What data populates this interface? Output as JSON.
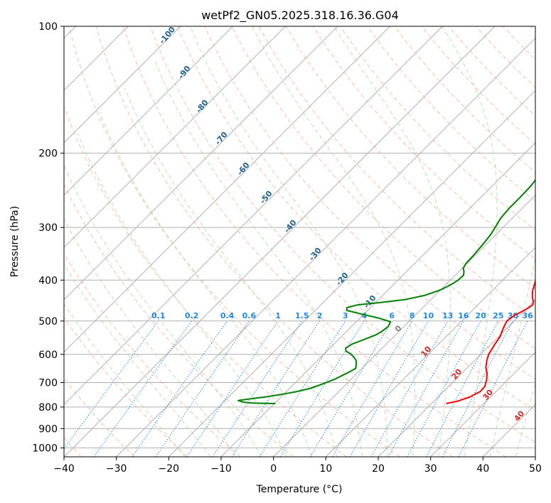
{
  "chart_data": {
    "type": "line",
    "title": "wetPf2_GN05.2025.318.16.36.G04",
    "xlabel": "Temperature (°C)",
    "ylabel": "Pressure (hPa)",
    "xlim": [
      -40,
      50
    ],
    "ylim": [
      1050,
      100
    ],
    "xticks": [
      "−40",
      "−30",
      "−20",
      "−10",
      "0",
      "10",
      "20",
      "30",
      "40",
      "50"
    ],
    "yticks": [
      "100",
      "200",
      "300",
      "400",
      "500",
      "600",
      "700",
      "800",
      "900",
      "1000"
    ],
    "dry_adiabat_labels": [
      "-100",
      "-90",
      "-80",
      "-70",
      "-60",
      "-50",
      "-40",
      "-30",
      "-20",
      "-10",
      "0",
      "10",
      "20",
      "30",
      "40"
    ],
    "mixing_ratio_labels": [
      "0.1",
      "0.2",
      "0.4",
      "0.6",
      "1",
      "1.5",
      "2",
      "3",
      "4",
      "6",
      "8",
      "10",
      "13",
      "16",
      "20",
      "25",
      "30",
      "36"
    ],
    "series": [
      {
        "name": "Temperature",
        "color": "#ff0000",
        "points": [
          [
            22.8,
            785
          ],
          [
            24.5,
            775
          ],
          [
            26.0,
            758
          ],
          [
            27.0,
            735
          ],
          [
            26.9,
            715
          ],
          [
            26.0,
            690
          ],
          [
            24.8,
            665
          ],
          [
            23.5,
            645
          ],
          [
            22.3,
            620
          ],
          [
            21.5,
            600
          ],
          [
            20.8,
            570
          ],
          [
            20.3,
            545
          ],
          [
            19.3,
            520
          ],
          [
            18.6,
            500
          ],
          [
            19.0,
            485
          ],
          [
            20.0,
            470
          ],
          [
            20.5,
            458
          ],
          [
            19.8,
            448
          ],
          [
            19.0,
            440
          ],
          [
            17.8,
            425
          ],
          [
            16.3,
            400
          ],
          [
            14.8,
            380
          ],
          [
            13.2,
            362
          ],
          [
            11.8,
            342
          ],
          [
            10.5,
            325
          ],
          [
            9.2,
            310
          ],
          [
            7.8,
            295
          ],
          [
            6.2,
            280
          ],
          [
            4.8,
            265
          ],
          [
            3.2,
            250
          ],
          [
            1.8,
            236
          ],
          [
            0.6,
            222
          ],
          [
            -0.3,
            210
          ],
          [
            -0.9,
            200
          ],
          [
            -1.2,
            190
          ],
          [
            -1.4,
            180
          ],
          [
            -1.2,
            172
          ],
          [
            -0.7,
            165
          ],
          [
            0.2,
            158
          ],
          [
            1.5,
            152
          ],
          [
            3.2,
            145
          ],
          [
            4.8,
            138
          ],
          [
            5.8,
            130
          ],
          [
            6.6,
            122
          ],
          [
            7.4,
            115
          ],
          [
            8.2,
            108
          ],
          [
            9.0,
            100
          ]
        ]
      },
      {
        "name": "Dewpoint",
        "color": "#008000",
        "points": [
          [
            -9.8,
            785
          ],
          [
            -12.0,
            784
          ],
          [
            -14.8,
            782
          ],
          [
            -16.5,
            778
          ],
          [
            -17.5,
            772
          ],
          [
            -15.5,
            765
          ],
          [
            -13.0,
            757
          ],
          [
            -10.5,
            747
          ],
          [
            -8.0,
            735
          ],
          [
            -6.0,
            722
          ],
          [
            -4.5,
            705
          ],
          [
            -3.0,
            685
          ],
          [
            -1.7,
            660
          ],
          [
            -1.2,
            648
          ],
          [
            -1.8,
            635
          ],
          [
            -2.5,
            622
          ],
          [
            -3.6,
            610
          ],
          [
            -5.0,
            598
          ],
          [
            -6.3,
            590
          ],
          [
            -7.0,
            580
          ],
          [
            -6.5,
            567
          ],
          [
            -5.0,
            552
          ],
          [
            -3.8,
            540
          ],
          [
            -3.3,
            530
          ],
          [
            -3.0,
            515
          ],
          [
            -3.5,
            502
          ],
          [
            -6.5,
            492
          ],
          [
            -11.0,
            480
          ],
          [
            -14.0,
            472
          ],
          [
            -14.5,
            465
          ],
          [
            -13.0,
            458
          ],
          [
            -9.0,
            452
          ],
          [
            -5.0,
            445
          ],
          [
            -2.0,
            435
          ],
          [
            0.0,
            422
          ],
          [
            1.0,
            410
          ],
          [
            1.5,
            400
          ],
          [
            1.6,
            390
          ],
          [
            1.0,
            382
          ],
          [
            0.2,
            375
          ],
          [
            -0.2,
            365
          ],
          [
            -0.3,
            350
          ],
          [
            -0.6,
            330
          ],
          [
            -1.0,
            312
          ],
          [
            -1.6,
            298
          ],
          [
            -2.2,
            285
          ],
          [
            -2.5,
            270
          ],
          [
            -2.5,
            255
          ],
          [
            -2.6,
            240
          ],
          [
            -3.0,
            228
          ],
          [
            -3.6,
            218
          ],
          [
            -4.6,
            208
          ],
          [
            -5.5,
            200
          ],
          [
            -6.0,
            190
          ],
          [
            -6.0,
            178
          ],
          [
            -5.0,
            168
          ],
          [
            -4.1,
            160
          ],
          [
            -4.1,
            150
          ],
          [
            -5.0,
            140
          ],
          [
            -5.7,
            130
          ],
          [
            -5.0,
            122
          ],
          [
            -3.5,
            115
          ],
          [
            -1.6,
            108
          ],
          [
            0.5,
            100
          ]
        ]
      }
    ]
  }
}
